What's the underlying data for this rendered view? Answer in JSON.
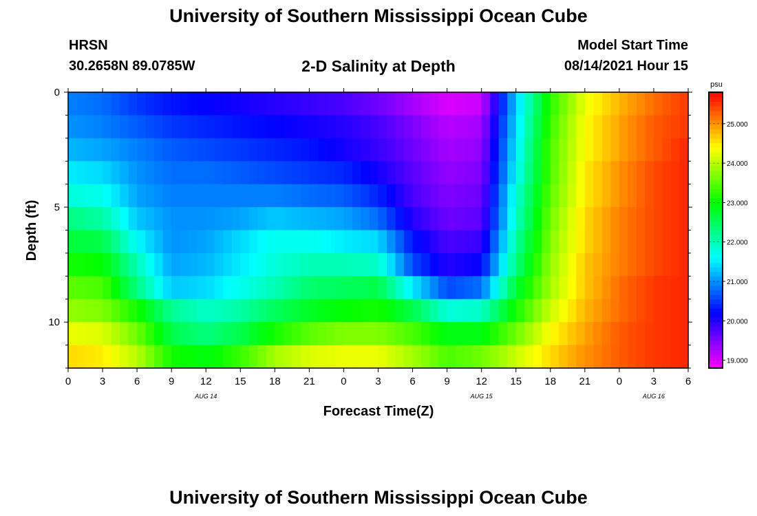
{
  "header": {
    "title": "University of Southern Mississippi Ocean Cube",
    "station": "HRSN",
    "coords": "30.2658N  89.0785W",
    "subtitle": "2-D Salinity at Depth",
    "start_label": "Model Start Time",
    "start_value": "08/14/2021 Hour 15"
  },
  "footer": {
    "title": "University of Southern Mississippi Ocean Cube"
  },
  "chart_data": {
    "type": "heatmap",
    "title": "2-D Salinity at Depth",
    "xlabel": "Forecast Time(Z)",
    "ylabel": "Depth (ft)",
    "x_ticks": [
      "0",
      "3",
      "6",
      "9",
      "12",
      "15",
      "18",
      "21",
      "0",
      "3",
      "6",
      "9",
      "12",
      "15",
      "18",
      "21",
      "0",
      "3",
      "6"
    ],
    "x_range_hours": [
      0,
      54
    ],
    "y_ticks": [
      "0",
      "5",
      "10"
    ],
    "y_range_ft": [
      0,
      12
    ],
    "date_labels": [
      {
        "label": "AUG 14",
        "hour": 12
      },
      {
        "label": "AUG 15",
        "hour": 36
      },
      {
        "label": "AUG 16",
        "hour": 51
      }
    ],
    "colorbar": {
      "unit": "psu",
      "min": 18.8,
      "max": 25.8,
      "ticks": [
        "19.000",
        "20.000",
        "21.000",
        "22.000",
        "23.000",
        "24.000",
        "25.000"
      ],
      "tick_values": [
        19,
        20,
        21,
        22,
        23,
        24,
        25
      ]
    },
    "depth_levels_ft": [
      0.5,
      1.5,
      2.5,
      3.5,
      4.5,
      5.5,
      6.5,
      7.5,
      8.5,
      9.5,
      10.5,
      11.5
    ],
    "time_hours": [
      0,
      3,
      6,
      9,
      12,
      15,
      18,
      21,
      24,
      27,
      30,
      33,
      36,
      39,
      42,
      45,
      48,
      51,
      54
    ],
    "salinity_psu": [
      [
        20.9,
        20.8,
        20.5,
        20.3,
        20.2,
        20.1,
        20.0,
        19.9,
        19.8,
        19.6,
        19.3,
        19.0,
        19.1,
        21.3,
        23.2,
        24.3,
        24.8,
        25.2,
        25.5
      ],
      [
        21.0,
        20.9,
        20.7,
        20.5,
        20.4,
        20.3,
        20.2,
        20.1,
        20.0,
        19.8,
        19.5,
        19.2,
        19.3,
        21.4,
        23.3,
        24.4,
        24.9,
        25.3,
        25.5
      ],
      [
        21.2,
        21.1,
        20.9,
        20.7,
        20.6,
        20.5,
        20.4,
        20.3,
        20.1,
        19.9,
        19.6,
        19.3,
        19.4,
        21.5,
        23.4,
        24.4,
        24.9,
        25.3,
        25.6
      ],
      [
        21.5,
        21.4,
        21.0,
        20.8,
        20.8,
        20.7,
        20.6,
        20.5,
        20.4,
        20.1,
        19.7,
        19.4,
        19.5,
        21.6,
        23.4,
        24.5,
        25.0,
        25.4,
        25.6
      ],
      [
        21.8,
        21.7,
        21.1,
        20.9,
        20.9,
        20.9,
        20.9,
        20.8,
        20.7,
        20.4,
        19.8,
        19.5,
        19.6,
        21.8,
        23.5,
        24.5,
        25.0,
        25.4,
        25.6
      ],
      [
        22.3,
        22.1,
        21.3,
        21.0,
        21.0,
        21.1,
        21.3,
        21.2,
        21.1,
        20.8,
        20.0,
        19.6,
        19.7,
        21.9,
        23.6,
        24.6,
        25.1,
        25.4,
        25.6
      ],
      [
        22.7,
        22.6,
        21.6,
        21.0,
        21.1,
        21.4,
        21.7,
        21.7,
        21.5,
        21.4,
        20.3,
        19.8,
        19.9,
        22.1,
        23.7,
        24.6,
        25.1,
        25.4,
        25.6
      ],
      [
        23.1,
        23.0,
        22.0,
        21.1,
        21.2,
        21.5,
        21.8,
        22.0,
        22.0,
        21.9,
        20.6,
        20.0,
        20.2,
        22.3,
        23.8,
        24.7,
        25.1,
        25.4,
        25.6
      ],
      [
        23.5,
        23.4,
        22.3,
        21.3,
        21.4,
        21.7,
        22.0,
        22.4,
        22.5,
        22.6,
        21.5,
        20.6,
        20.8,
        22.7,
        23.9,
        24.7,
        25.2,
        25.5,
        25.6
      ],
      [
        23.8,
        23.7,
        23.1,
        22.2,
        21.9,
        22.1,
        22.5,
        22.8,
        23.0,
        23.1,
        22.6,
        21.8,
        21.9,
        23.1,
        24.1,
        24.8,
        25.2,
        25.5,
        25.6
      ],
      [
        24.3,
        24.2,
        23.6,
        22.6,
        22.3,
        22.6,
        23.1,
        23.5,
        23.7,
        23.7,
        23.4,
        22.9,
        22.9,
        23.6,
        24.4,
        24.9,
        25.3,
        25.5,
        25.6
      ],
      [
        24.6,
        24.5,
        24.0,
        23.1,
        22.9,
        23.3,
        23.9,
        24.2,
        24.3,
        24.3,
        23.9,
        23.4,
        23.6,
        24.1,
        24.6,
        25.0,
        25.3,
        25.5,
        25.6
      ]
    ]
  }
}
